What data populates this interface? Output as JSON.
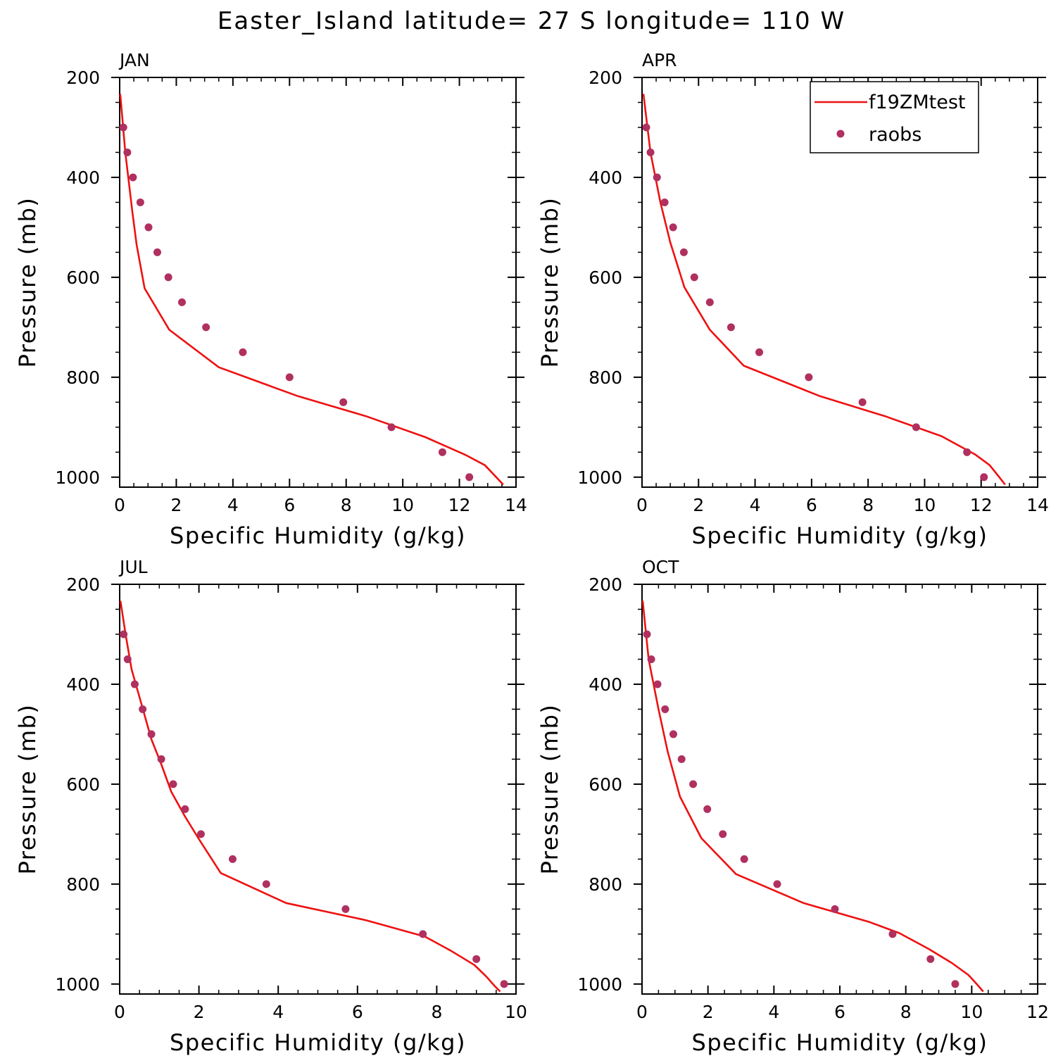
{
  "title": "Easter_Island  latitude= 27 S longitude= 110 W",
  "colors": {
    "model": "#ee1111",
    "obs": "#b03060",
    "axis": "#000000"
  },
  "legend": {
    "model_label": "f19ZMtest",
    "obs_label": "raobs",
    "panel": "APR"
  },
  "chart_data": [
    {
      "type": "line",
      "panel": "JAN",
      "xlabel": "Specific Humidity (g/kg)",
      "ylabel": "Pressure (mb)",
      "xlim": [
        0,
        14
      ],
      "ylim": [
        200,
        1020
      ],
      "y_inverted": true,
      "xticks": [
        0,
        2,
        4,
        6,
        8,
        10,
        12,
        14
      ],
      "yticks": [
        200,
        400,
        600,
        800,
        1000
      ],
      "series": [
        {
          "name": "f19ZMtest",
          "kind": "line",
          "points": [
            [
              0.02,
              233
            ],
            [
              0.2,
              350
            ],
            [
              0.45,
              470
            ],
            [
              0.6,
              535
            ],
            [
              0.88,
              622
            ],
            [
              1.75,
              705
            ],
            [
              3.5,
              780
            ],
            [
              6.3,
              838
            ],
            [
              8.7,
              878
            ],
            [
              10.8,
              920
            ],
            [
              12.2,
              955
            ],
            [
              12.9,
              976
            ],
            [
              13.3,
              1000
            ],
            [
              13.55,
              1015
            ]
          ]
        },
        {
          "name": "raobs",
          "kind": "scatter",
          "points": [
            [
              0.13,
              300
            ],
            [
              0.27,
              350
            ],
            [
              0.47,
              400
            ],
            [
              0.73,
              450
            ],
            [
              1.02,
              500
            ],
            [
              1.33,
              550
            ],
            [
              1.72,
              600
            ],
            [
              2.2,
              650
            ],
            [
              3.05,
              700
            ],
            [
              4.35,
              750
            ],
            [
              6.0,
              800
            ],
            [
              7.9,
              850
            ],
            [
              9.6,
              900
            ],
            [
              11.4,
              950
            ],
            [
              12.35,
              1000
            ]
          ]
        }
      ]
    },
    {
      "type": "line",
      "panel": "APR",
      "xlabel": "Specific Humidity (g/kg)",
      "ylabel": "Pressure (mb)",
      "xlim": [
        0,
        14
      ],
      "ylim": [
        200,
        1020
      ],
      "y_inverted": true,
      "xticks": [
        0,
        2,
        4,
        6,
        8,
        10,
        12,
        14
      ],
      "yticks": [
        200,
        400,
        600,
        800,
        1000
      ],
      "series": [
        {
          "name": "f19ZMtest",
          "kind": "line",
          "points": [
            [
              0.05,
              233
            ],
            [
              0.3,
              350
            ],
            [
              0.65,
              450
            ],
            [
              1.0,
              530
            ],
            [
              1.5,
              620
            ],
            [
              2.4,
              705
            ],
            [
              3.6,
              777
            ],
            [
              6.3,
              838
            ],
            [
              8.6,
              878
            ],
            [
              10.6,
              918
            ],
            [
              11.8,
              955
            ],
            [
              12.3,
              976
            ],
            [
              12.6,
              997
            ],
            [
              12.85,
              1015
            ]
          ]
        },
        {
          "name": "raobs",
          "kind": "scatter",
          "points": [
            [
              0.15,
              300
            ],
            [
              0.3,
              350
            ],
            [
              0.53,
              400
            ],
            [
              0.8,
              450
            ],
            [
              1.1,
              500
            ],
            [
              1.48,
              550
            ],
            [
              1.85,
              600
            ],
            [
              2.4,
              650
            ],
            [
              3.15,
              700
            ],
            [
              4.15,
              750
            ],
            [
              5.9,
              800
            ],
            [
              7.8,
              850
            ],
            [
              9.7,
              900
            ],
            [
              11.5,
              950
            ],
            [
              12.1,
              1000
            ]
          ]
        }
      ]
    },
    {
      "type": "line",
      "panel": "JUL",
      "xlabel": "Specific Humidity (g/kg)",
      "ylabel": "Pressure (mb)",
      "xlim": [
        0,
        10
      ],
      "ylim": [
        200,
        1020
      ],
      "y_inverted": true,
      "xticks": [
        0,
        2,
        4,
        6,
        8,
        10
      ],
      "yticks": [
        200,
        400,
        600,
        800,
        1000
      ],
      "series": [
        {
          "name": "f19ZMtest",
          "kind": "line",
          "points": [
            [
              0.02,
              233
            ],
            [
              0.15,
              300
            ],
            [
              0.3,
              370
            ],
            [
              0.55,
              440
            ],
            [
              0.8,
              510
            ],
            [
              1.05,
              560
            ],
            [
              1.3,
              615
            ],
            [
              1.65,
              665
            ],
            [
              2.0,
              710
            ],
            [
              2.55,
              778
            ],
            [
              4.2,
              838
            ],
            [
              6.2,
              872
            ],
            [
              7.7,
              905
            ],
            [
              8.35,
              933
            ],
            [
              8.95,
              962
            ],
            [
              9.25,
              985
            ],
            [
              9.45,
              1003
            ],
            [
              9.6,
              1015
            ]
          ]
        },
        {
          "name": "raobs",
          "kind": "scatter",
          "points": [
            [
              0.1,
              300
            ],
            [
              0.2,
              350
            ],
            [
              0.38,
              400
            ],
            [
              0.58,
              450
            ],
            [
              0.8,
              500
            ],
            [
              1.05,
              550
            ],
            [
              1.35,
              600
            ],
            [
              1.65,
              650
            ],
            [
              2.05,
              700
            ],
            [
              2.85,
              750
            ],
            [
              3.7,
              800
            ],
            [
              5.7,
              850
            ],
            [
              7.65,
              900
            ],
            [
              9.0,
              950
            ],
            [
              9.7,
              1000
            ]
          ]
        }
      ]
    },
    {
      "type": "line",
      "panel": "OCT",
      "xlabel": "Specific Humidity (g/kg)",
      "ylabel": "Pressure (mb)",
      "xlim": [
        0,
        12
      ],
      "ylim": [
        200,
        1020
      ],
      "y_inverted": true,
      "xticks": [
        0,
        2,
        4,
        6,
        8,
        10,
        12
      ],
      "yticks": [
        200,
        400,
        600,
        800,
        1000
      ],
      "series": [
        {
          "name": "f19ZMtest",
          "kind": "line",
          "points": [
            [
              0.02,
              233
            ],
            [
              0.2,
              350
            ],
            [
              0.5,
              450
            ],
            [
              0.78,
              535
            ],
            [
              1.15,
              625
            ],
            [
              1.8,
              708
            ],
            [
              2.85,
              780
            ],
            [
              4.9,
              838
            ],
            [
              6.9,
              876
            ],
            [
              7.8,
              898
            ],
            [
              8.7,
              930
            ],
            [
              9.4,
              958
            ],
            [
              9.9,
              982
            ],
            [
              10.15,
              1000
            ],
            [
              10.35,
              1015
            ]
          ]
        },
        {
          "name": "raobs",
          "kind": "scatter",
          "points": [
            [
              0.15,
              300
            ],
            [
              0.28,
              350
            ],
            [
              0.47,
              400
            ],
            [
              0.7,
              450
            ],
            [
              0.95,
              500
            ],
            [
              1.2,
              550
            ],
            [
              1.55,
              600
            ],
            [
              1.98,
              650
            ],
            [
              2.45,
              700
            ],
            [
              3.1,
              750
            ],
            [
              4.1,
              800
            ],
            [
              5.85,
              850
            ],
            [
              7.6,
              900
            ],
            [
              8.75,
              950
            ],
            [
              9.5,
              1000
            ]
          ]
        }
      ]
    }
  ]
}
